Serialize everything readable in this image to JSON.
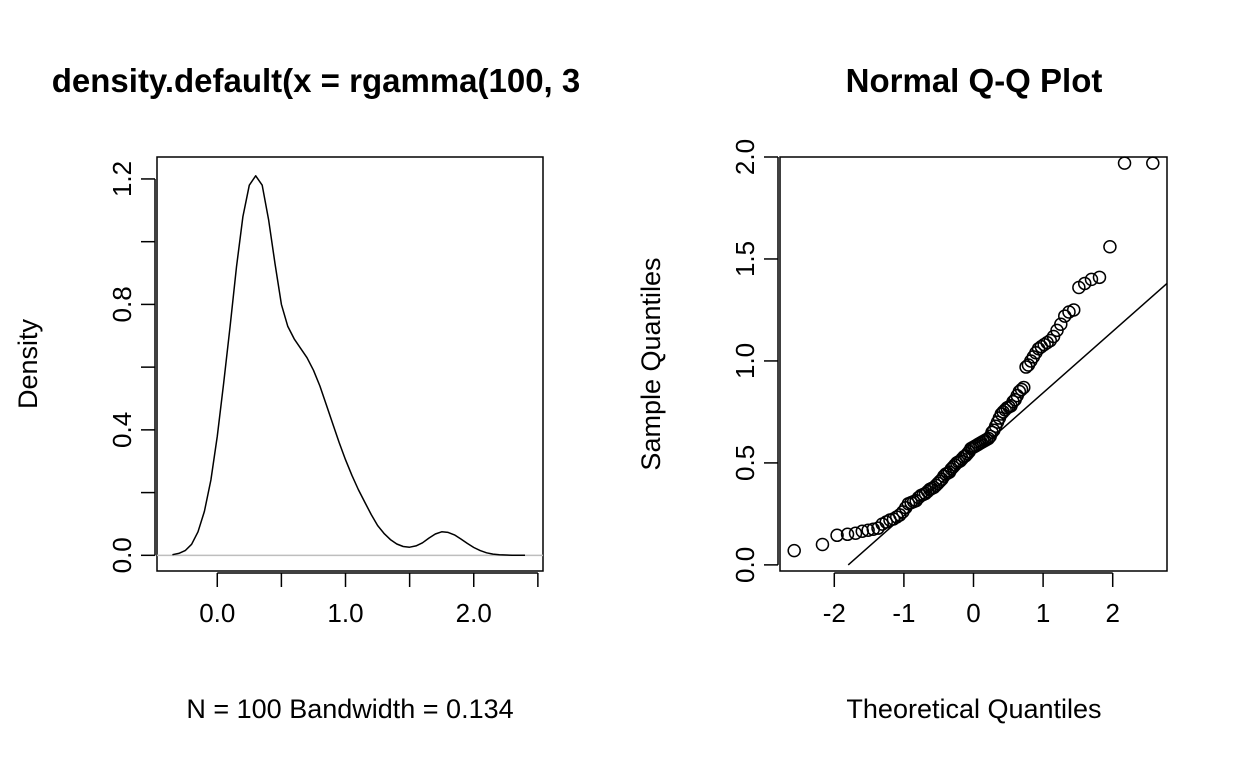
{
  "chart_data": [
    {
      "type": "line",
      "title": "density.default(x = rgamma(100, 3",
      "xlabel": "N = 100   Bandwidth = 0.134",
      "ylabel": "Density",
      "xlim": [
        -0.47,
        2.54
      ],
      "ylim": [
        -0.05,
        1.27
      ],
      "xticks": [
        0.0,
        0.5,
        1.0,
        1.5,
        2.0,
        2.5
      ],
      "xtick_labels": [
        "0.0",
        "",
        "1.0",
        "",
        "2.0",
        ""
      ],
      "yticks": [
        0.0,
        0.2,
        0.4,
        0.6,
        0.8,
        1.0,
        1.2
      ],
      "ytick_labels": [
        "0.0",
        "",
        "0.4",
        "",
        "0.8",
        "",
        "1.2"
      ],
      "baseline": {
        "y": 0,
        "color": "#bebebe"
      },
      "series": [
        {
          "x": [
            -0.35,
            -0.3,
            -0.25,
            -0.2,
            -0.15,
            -0.1,
            -0.05,
            0.0,
            0.05,
            0.1,
            0.15,
            0.2,
            0.25,
            0.3,
            0.35,
            0.4,
            0.45,
            0.5,
            0.55,
            0.6,
            0.65,
            0.7,
            0.75,
            0.8,
            0.85,
            0.9,
            0.95,
            1.0,
            1.05,
            1.1,
            1.15,
            1.2,
            1.25,
            1.3,
            1.35,
            1.4,
            1.45,
            1.5,
            1.55,
            1.6,
            1.65,
            1.7,
            1.75,
            1.8,
            1.85,
            1.9,
            1.95,
            2.0,
            2.05,
            2.1,
            2.15,
            2.2,
            2.25,
            2.3,
            2.35,
            2.4
          ],
          "y": [
            0.002,
            0.006,
            0.015,
            0.035,
            0.075,
            0.14,
            0.24,
            0.38,
            0.55,
            0.73,
            0.92,
            1.08,
            1.18,
            1.21,
            1.18,
            1.07,
            0.93,
            0.8,
            0.73,
            0.69,
            0.66,
            0.63,
            0.59,
            0.54,
            0.48,
            0.42,
            0.36,
            0.305,
            0.255,
            0.21,
            0.17,
            0.13,
            0.095,
            0.07,
            0.05,
            0.036,
            0.028,
            0.026,
            0.03,
            0.04,
            0.055,
            0.068,
            0.075,
            0.073,
            0.065,
            0.052,
            0.038,
            0.025,
            0.015,
            0.008,
            0.004,
            0.002,
            0.001,
            0.0005,
            0.0002,
            0.0
          ]
        }
      ]
    },
    {
      "type": "scatter",
      "title": "Normal Q-Q Plot",
      "xlabel": "Theoretical Quantiles",
      "ylabel": "Sample Quantiles",
      "xlim": [
        -2.78,
        2.78
      ],
      "ylim": [
        -0.03,
        2.0
      ],
      "xticks": [
        -2,
        -1,
        0,
        1,
        2
      ],
      "xtick_labels": [
        "-2",
        "-1",
        "0",
        "1",
        "2"
      ],
      "yticks": [
        0.0,
        0.5,
        1.0,
        1.5,
        2.0
      ],
      "ytick_labels": [
        "0.0",
        "0.5",
        "1.0",
        "1.5",
        "2.0"
      ],
      "reference_line": {
        "x": [
          -1.8,
          2.78
        ],
        "y": [
          0.0,
          1.38
        ]
      },
      "points": {
        "x": [
          -2.576,
          -2.17,
          -1.96,
          -1.81,
          -1.695,
          -1.598,
          -1.514,
          -1.44,
          -1.372,
          -1.311,
          -1.254,
          -1.2,
          -1.15,
          -1.103,
          -1.058,
          -1.015,
          -0.974,
          -0.935,
          -0.896,
          -0.86,
          -0.824,
          -0.789,
          -0.755,
          -0.722,
          -0.69,
          -0.659,
          -0.628,
          -0.598,
          -0.568,
          -0.539,
          -0.51,
          -0.482,
          -0.454,
          -0.426,
          -0.399,
          -0.372,
          -0.345,
          -0.319,
          -0.292,
          -0.266,
          -0.24,
          -0.215,
          -0.189,
          -0.164,
          -0.138,
          -0.113,
          -0.088,
          -0.063,
          -0.038,
          -0.013,
          0.013,
          0.038,
          0.063,
          0.088,
          0.113,
          0.138,
          0.164,
          0.189,
          0.215,
          0.24,
          0.266,
          0.292,
          0.319,
          0.345,
          0.372,
          0.399,
          0.426,
          0.454,
          0.482,
          0.51,
          0.539,
          0.568,
          0.598,
          0.628,
          0.659,
          0.69,
          0.722,
          0.755,
          0.789,
          0.824,
          0.86,
          0.896,
          0.935,
          0.974,
          1.015,
          1.058,
          1.103,
          1.15,
          1.2,
          1.254,
          1.311,
          1.372,
          1.44,
          1.514,
          1.598,
          1.695,
          1.81,
          1.96,
          2.17,
          2.576
        ],
        "y": [
          0.07,
          0.1,
          0.145,
          0.15,
          0.155,
          0.165,
          0.17,
          0.175,
          0.18,
          0.2,
          0.21,
          0.22,
          0.225,
          0.235,
          0.245,
          0.26,
          0.28,
          0.3,
          0.305,
          0.31,
          0.315,
          0.33,
          0.34,
          0.345,
          0.35,
          0.36,
          0.37,
          0.375,
          0.38,
          0.39,
          0.4,
          0.41,
          0.42,
          0.435,
          0.445,
          0.45,
          0.455,
          0.47,
          0.48,
          0.49,
          0.5,
          0.505,
          0.51,
          0.52,
          0.53,
          0.535,
          0.545,
          0.555,
          0.57,
          0.575,
          0.58,
          0.585,
          0.59,
          0.595,
          0.6,
          0.605,
          0.61,
          0.615,
          0.62,
          0.63,
          0.65,
          0.66,
          0.68,
          0.7,
          0.72,
          0.74,
          0.75,
          0.76,
          0.77,
          0.775,
          0.78,
          0.8,
          0.81,
          0.83,
          0.85,
          0.86,
          0.87,
          0.97,
          0.98,
          1.0,
          1.02,
          1.04,
          1.06,
          1.07,
          1.08,
          1.09,
          1.1,
          1.12,
          1.15,
          1.18,
          1.22,
          1.24,
          1.25,
          1.36,
          1.38,
          1.4,
          1.41,
          1.56,
          1.97,
          1.97
        ]
      }
    }
  ]
}
